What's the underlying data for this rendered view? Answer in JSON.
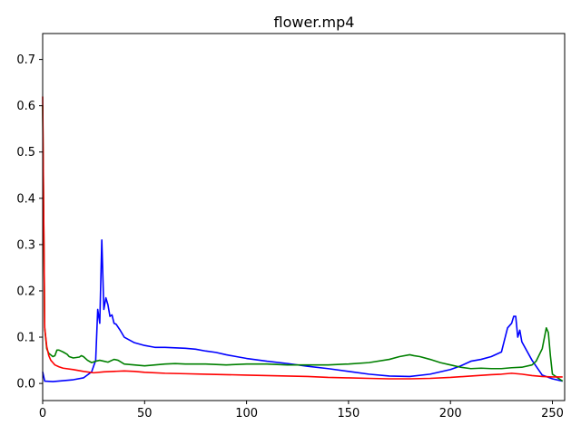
{
  "chart_data": {
    "type": "line",
    "title": "flower.mp4",
    "xlabel": "",
    "ylabel": "",
    "xlim": [
      0,
      256
    ],
    "ylim": [
      -0.037,
      0.756
    ],
    "xticks": [
      0,
      50,
      100,
      150,
      200,
      250
    ],
    "yticks": [
      0.0,
      0.1,
      0.2,
      0.3,
      0.4,
      0.5,
      0.6,
      0.7
    ],
    "grid": false,
    "legend": "none",
    "series": [
      {
        "color": "#0000ff",
        "points": [
          [
            0,
            0.025
          ],
          [
            1,
            0.005
          ],
          [
            5,
            0.004
          ],
          [
            10,
            0.006
          ],
          [
            15,
            0.008
          ],
          [
            20,
            0.012
          ],
          [
            24,
            0.025
          ],
          [
            26,
            0.05
          ],
          [
            27,
            0.16
          ],
          [
            28,
            0.13
          ],
          [
            29,
            0.31
          ],
          [
            30,
            0.16
          ],
          [
            31,
            0.185
          ],
          [
            32,
            0.17
          ],
          [
            33,
            0.145
          ],
          [
            34,
            0.148
          ],
          [
            35,
            0.13
          ],
          [
            36,
            0.128
          ],
          [
            38,
            0.115
          ],
          [
            40,
            0.1
          ],
          [
            45,
            0.088
          ],
          [
            50,
            0.082
          ],
          [
            55,
            0.078
          ],
          [
            60,
            0.078
          ],
          [
            65,
            0.077
          ],
          [
            70,
            0.076
          ],
          [
            75,
            0.074
          ],
          [
            80,
            0.07
          ],
          [
            85,
            0.067
          ],
          [
            90,
            0.062
          ],
          [
            95,
            0.058
          ],
          [
            100,
            0.054
          ],
          [
            110,
            0.048
          ],
          [
            120,
            0.043
          ],
          [
            130,
            0.037
          ],
          [
            140,
            0.032
          ],
          [
            150,
            0.026
          ],
          [
            160,
            0.02
          ],
          [
            170,
            0.016
          ],
          [
            180,
            0.015
          ],
          [
            190,
            0.02
          ],
          [
            200,
            0.03
          ],
          [
            205,
            0.038
          ],
          [
            210,
            0.048
          ],
          [
            215,
            0.052
          ],
          [
            220,
            0.058
          ],
          [
            225,
            0.068
          ],
          [
            228,
            0.12
          ],
          [
            230,
            0.13
          ],
          [
            231,
            0.145
          ],
          [
            232,
            0.145
          ],
          [
            233,
            0.1
          ],
          [
            234,
            0.115
          ],
          [
            235,
            0.09
          ],
          [
            240,
            0.05
          ],
          [
            245,
            0.018
          ],
          [
            250,
            0.01
          ],
          [
            255,
            0.005
          ]
        ]
      },
      {
        "color": "#008000",
        "points": [
          [
            0,
            0.6
          ],
          [
            1,
            0.12
          ],
          [
            2,
            0.075
          ],
          [
            3,
            0.065
          ],
          [
            5,
            0.058
          ],
          [
            6,
            0.06
          ],
          [
            7,
            0.072
          ],
          [
            8,
            0.072
          ],
          [
            10,
            0.068
          ],
          [
            12,
            0.063
          ],
          [
            13,
            0.058
          ],
          [
            15,
            0.055
          ],
          [
            18,
            0.057
          ],
          [
            19,
            0.06
          ],
          [
            20,
            0.058
          ],
          [
            22,
            0.05
          ],
          [
            24,
            0.045
          ],
          [
            26,
            0.048
          ],
          [
            28,
            0.05
          ],
          [
            30,
            0.048
          ],
          [
            32,
            0.046
          ],
          [
            35,
            0.052
          ],
          [
            37,
            0.05
          ],
          [
            40,
            0.042
          ],
          [
            45,
            0.04
          ],
          [
            50,
            0.038
          ],
          [
            55,
            0.04
          ],
          [
            60,
            0.042
          ],
          [
            65,
            0.043
          ],
          [
            70,
            0.042
          ],
          [
            80,
            0.042
          ],
          [
            90,
            0.04
          ],
          [
            100,
            0.042
          ],
          [
            110,
            0.042
          ],
          [
            120,
            0.04
          ],
          [
            130,
            0.04
          ],
          [
            140,
            0.04
          ],
          [
            150,
            0.042
          ],
          [
            160,
            0.045
          ],
          [
            170,
            0.052
          ],
          [
            175,
            0.058
          ],
          [
            180,
            0.062
          ],
          [
            182,
            0.06
          ],
          [
            185,
            0.058
          ],
          [
            190,
            0.052
          ],
          [
            195,
            0.045
          ],
          [
            200,
            0.04
          ],
          [
            205,
            0.035
          ],
          [
            210,
            0.032
          ],
          [
            215,
            0.033
          ],
          [
            220,
            0.032
          ],
          [
            225,
            0.032
          ],
          [
            230,
            0.034
          ],
          [
            235,
            0.035
          ],
          [
            240,
            0.04
          ],
          [
            242,
            0.048
          ],
          [
            245,
            0.075
          ],
          [
            247,
            0.12
          ],
          [
            248,
            0.11
          ],
          [
            249,
            0.06
          ],
          [
            250,
            0.02
          ],
          [
            255,
            0.005
          ]
        ]
      },
      {
        "color": "#ff0000",
        "points": [
          [
            0,
            0.62
          ],
          [
            1,
            0.12
          ],
          [
            2,
            0.08
          ],
          [
            3,
            0.06
          ],
          [
            4,
            0.05
          ],
          [
            5,
            0.045
          ],
          [
            6,
            0.04
          ],
          [
            8,
            0.036
          ],
          [
            10,
            0.033
          ],
          [
            15,
            0.03
          ],
          [
            20,
            0.026
          ],
          [
            25,
            0.023
          ],
          [
            30,
            0.025
          ],
          [
            35,
            0.026
          ],
          [
            40,
            0.027
          ],
          [
            45,
            0.026
          ],
          [
            50,
            0.024
          ],
          [
            60,
            0.022
          ],
          [
            70,
            0.021
          ],
          [
            80,
            0.02
          ],
          [
            90,
            0.019
          ],
          [
            100,
            0.018
          ],
          [
            110,
            0.017
          ],
          [
            120,
            0.016
          ],
          [
            130,
            0.015
          ],
          [
            140,
            0.013
          ],
          [
            150,
            0.012
          ],
          [
            160,
            0.011
          ],
          [
            170,
            0.01
          ],
          [
            180,
            0.01
          ],
          [
            190,
            0.011
          ],
          [
            200,
            0.013
          ],
          [
            210,
            0.016
          ],
          [
            220,
            0.019
          ],
          [
            225,
            0.02
          ],
          [
            230,
            0.022
          ],
          [
            235,
            0.02
          ],
          [
            240,
            0.017
          ],
          [
            245,
            0.015
          ],
          [
            250,
            0.014
          ],
          [
            255,
            0.014
          ]
        ]
      }
    ]
  }
}
